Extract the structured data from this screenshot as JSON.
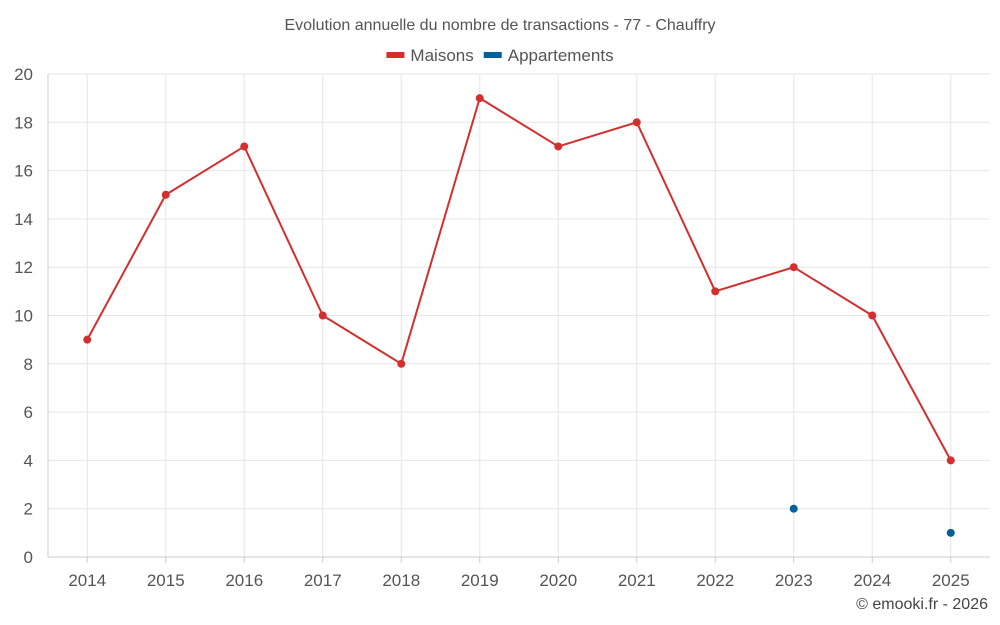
{
  "chart_data": {
    "type": "line",
    "title": "Evolution annuelle du nombre de transactions - 77 - Chauffry",
    "xlabel": "",
    "ylabel": "",
    "categories": [
      "2014",
      "2015",
      "2016",
      "2017",
      "2018",
      "2019",
      "2020",
      "2021",
      "2022",
      "2023",
      "2024",
      "2025"
    ],
    "ylim": [
      0,
      20
    ],
    "yticks": [
      0,
      2,
      4,
      6,
      8,
      10,
      12,
      14,
      16,
      18,
      20
    ],
    "grid": true,
    "legend_position": "top-center",
    "series": [
      {
        "name": "Maisons",
        "color": "#d32f2f",
        "values": [
          9,
          15,
          17,
          10,
          8,
          19,
          17,
          18,
          11,
          12,
          10,
          4
        ]
      },
      {
        "name": "Appartements",
        "color": "#01619a",
        "values": [
          null,
          null,
          null,
          null,
          null,
          null,
          null,
          null,
          null,
          2,
          null,
          1
        ]
      }
    ]
  },
  "footer": {
    "credit": "© emooki.fr - 2026"
  }
}
